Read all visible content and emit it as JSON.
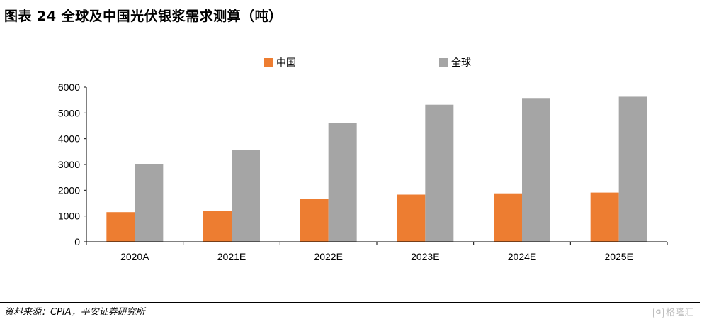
{
  "title": "图表 24   全球及中国光伏银浆需求测算（吨）",
  "source": "资料来源：CPIA，平安证券研究所",
  "watermark": {
    "logo_glyph": "G",
    "text": "格隆汇"
  },
  "chart_data": {
    "type": "bar",
    "categories": [
      "2020A",
      "2021E",
      "2022E",
      "2023E",
      "2024E",
      "2025E"
    ],
    "series": [
      {
        "name": "中国",
        "color": "#ED7D31",
        "values": [
          1150,
          1190,
          1660,
          1830,
          1880,
          1910
        ]
      },
      {
        "name": "全球",
        "color": "#A5A5A5",
        "values": [
          3010,
          3560,
          4600,
          5320,
          5580,
          5630
        ]
      }
    ],
    "yticks": [
      0,
      1000,
      2000,
      3000,
      4000,
      5000,
      6000
    ],
    "ylim": [
      0,
      6000
    ],
    "xlabel": "",
    "ylabel": "",
    "legend_position": "top-center",
    "grid": false
  }
}
